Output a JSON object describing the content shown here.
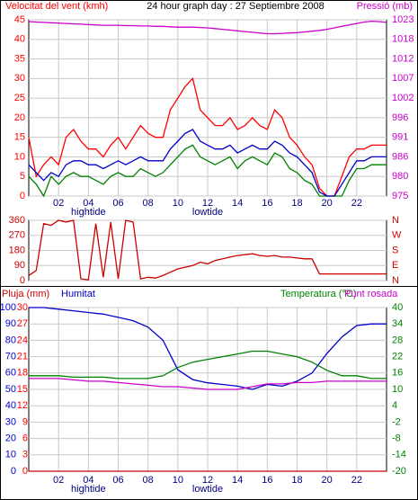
{
  "chart_data": [
    {
      "type": "line",
      "title": "24 hour graph day : 27 Septiembre 2008",
      "y_label": "Velocitat del vent (kmh)",
      "y2_label": "Pressió (mb)",
      "ycolor": "#ff0000",
      "y2color": "#cc00cc",
      "xlim": [
        0,
        24
      ],
      "xticks": [
        {
          "value": 2,
          "label": "02"
        },
        {
          "value": 4,
          "label": "04"
        },
        {
          "value": 6,
          "label": "06"
        },
        {
          "value": 8,
          "label": "08"
        },
        {
          "value": 10,
          "label": "10"
        },
        {
          "value": 12,
          "label": "12"
        },
        {
          "value": 14,
          "label": "14"
        },
        {
          "value": 16,
          "label": "16"
        },
        {
          "value": 18,
          "label": "18"
        },
        {
          "value": 20,
          "label": "20"
        },
        {
          "value": 22,
          "label": "22"
        }
      ],
      "annotations": [
        {
          "text": "hightide",
          "x": 4
        },
        {
          "text": "lowtide",
          "x": 12
        }
      ],
      "ylim": [
        0,
        45
      ],
      "yticks": [
        0,
        5,
        10,
        15,
        20,
        25,
        30,
        35,
        40,
        45
      ],
      "y2lim": [
        975,
        1023
      ],
      "y2ticks": [
        975,
        {
          "value": 980.33,
          "label": "980"
        },
        {
          "value": 985.67,
          "label": "986"
        },
        991,
        {
          "value": 996.33,
          "label": "996"
        },
        {
          "value": 1001.67,
          "label": "1002"
        },
        1007,
        {
          "value": 1012.33,
          "label": "1012"
        },
        {
          "value": 1017.67,
          "label": "1018"
        },
        1023
      ],
      "grid": true,
      "x": [
        0,
        0.5,
        1,
        1.5,
        2,
        2.5,
        3,
        3.5,
        4,
        4.5,
        5,
        5.5,
        6,
        6.5,
        7,
        7.5,
        8,
        8.5,
        9,
        9.5,
        10,
        10.5,
        11,
        11.5,
        12,
        12.5,
        13,
        13.5,
        14,
        14.5,
        15,
        15.5,
        16,
        16.5,
        17,
        17.5,
        18,
        18.5,
        19,
        19.5,
        20,
        20.5,
        21,
        21.5,
        22,
        22.5,
        23,
        23.5,
        24
      ],
      "series": [
        {
          "color": "#ff0000",
          "values": [
            15,
            5,
            8,
            10,
            8,
            15,
            17,
            14,
            12,
            12,
            10,
            13,
            15,
            12,
            15,
            18,
            16,
            15,
            15,
            22,
            25,
            28,
            30,
            22,
            20,
            18,
            18,
            20,
            17,
            18,
            20,
            18,
            17,
            22,
            20,
            15,
            13,
            10,
            8,
            2,
            0,
            0,
            5,
            10,
            12,
            12,
            13,
            13,
            13
          ]
        },
        {
          "color": "#008000",
          "values": [
            5,
            3,
            0,
            5,
            3,
            5,
            6,
            5,
            5,
            4,
            3,
            5,
            6,
            5,
            5,
            7,
            6,
            5,
            6,
            8,
            10,
            12,
            13,
            10,
            9,
            8,
            9,
            10,
            7,
            9,
            10,
            9,
            8,
            11,
            10,
            7,
            6,
            4,
            3,
            0,
            0,
            0,
            0,
            4,
            7,
            7,
            8,
            8,
            8
          ]
        },
        {
          "color": "#0000cc",
          "values": [
            8,
            6,
            4,
            6,
            5,
            8,
            9,
            9,
            8,
            8,
            7,
            8,
            9,
            8,
            9,
            10,
            9,
            9,
            9,
            12,
            14,
            16,
            17,
            14,
            13,
            12,
            12,
            13,
            11,
            12,
            13,
            12,
            12,
            14,
            13,
            11,
            10,
            8,
            6,
            1,
            0,
            0,
            3,
            6,
            9,
            9,
            10,
            10,
            10
          ]
        },
        {
          "color": "#cc00cc",
          "axis": "y2",
          "values": [
            1022.5,
            1022.4,
            1022.3,
            1022.2,
            1022.1,
            1022,
            1021.9,
            1021.8,
            1021.7,
            1021.6,
            1021.5,
            1021.5,
            1021.5,
            1021.4,
            1021.4,
            1021.3,
            1021.3,
            1021.2,
            1021.2,
            1021.1,
            1021,
            1021,
            1021,
            1020.9,
            1020.8,
            1020.6,
            1020.4,
            1020.2,
            1020,
            1019.8,
            1019.6,
            1019.4,
            1019.2,
            1019.2,
            1019.3,
            1019.4,
            1019.5,
            1019.7,
            1019.9,
            1020.1,
            1020.4,
            1020.8,
            1021.2,
            1021.6,
            1022,
            1022.4,
            1022.6,
            1022.5,
            1022.3
          ]
        }
      ]
    },
    {
      "type": "line",
      "ycolor": "#cc0000",
      "y2color": "#cc0000",
      "xlim": [
        0,
        24
      ],
      "ylim": [
        0,
        360
      ],
      "yticks": [
        0,
        90,
        180,
        270,
        360
      ],
      "y2lim": [
        0,
        360
      ],
      "y2ticks": [
        {
          "value": 360,
          "label": "N"
        },
        {
          "value": 270,
          "label": "W"
        },
        {
          "value": 180,
          "label": "S"
        },
        {
          "value": 90,
          "label": "E"
        },
        {
          "value": 0,
          "label": "N"
        }
      ],
      "grid": true,
      "x": [
        0,
        0.5,
        1,
        1.5,
        2,
        2.5,
        3,
        3.5,
        4,
        4.5,
        5,
        5.5,
        6,
        6.5,
        7,
        7.5,
        8,
        8.5,
        9,
        9.5,
        10,
        10.5,
        11,
        11.5,
        12,
        12.5,
        13,
        13.5,
        14,
        14.5,
        15,
        15.5,
        16,
        16.5,
        17,
        17.5,
        18,
        18.5,
        19,
        19.5,
        20,
        20.5,
        21,
        21.5,
        22,
        22.5,
        23,
        23.5,
        24
      ],
      "series": [
        {
          "color": "#cc0000",
          "values": [
            30,
            60,
            340,
            330,
            360,
            350,
            360,
            10,
            5,
            340,
            20,
            350,
            10,
            360,
            350,
            10,
            20,
            15,
            30,
            50,
            70,
            80,
            90,
            110,
            100,
            120,
            130,
            140,
            150,
            155,
            160,
            150,
            145,
            150,
            140,
            140,
            135,
            130,
            130,
            40,
            40,
            40,
            40,
            40,
            40,
            40,
            40,
            40,
            40
          ]
        }
      ]
    },
    {
      "type": "line",
      "ycolor": "#ff0000",
      "y2color": "#008000",
      "y3color": "#0000cc",
      "xlim": [
        0,
        24
      ],
      "xticks": [
        {
          "value": 2,
          "label": "02"
        },
        {
          "value": 4,
          "label": "04"
        },
        {
          "value": 6,
          "label": "06"
        },
        {
          "value": 8,
          "label": "08"
        },
        {
          "value": 10,
          "label": "10"
        },
        {
          "value": 12,
          "label": "12"
        },
        {
          "value": 14,
          "label": "14"
        },
        {
          "value": 16,
          "label": "16"
        },
        {
          "value": 18,
          "label": "18"
        },
        {
          "value": 20,
          "label": "20"
        },
        {
          "value": 22,
          "label": "22"
        }
      ],
      "annotations": [
        {
          "text": "hightide",
          "x": 4
        },
        {
          "text": "lowtide",
          "x": 12
        }
      ],
      "ylim": [
        0,
        30
      ],
      "yticks": [
        0,
        3,
        6,
        9,
        12,
        15,
        18,
        21,
        24,
        27,
        30
      ],
      "y3lim": [
        0,
        100
      ],
      "y3ticks": [
        0,
        10,
        20,
        30,
        40,
        50,
        60,
        70,
        80,
        90,
        100
      ],
      "y2lim": [
        -20,
        40
      ],
      "y2ticks": [
        -20,
        -14,
        -8,
        -2,
        4,
        10,
        16,
        22,
        28,
        34,
        40
      ],
      "grid": true,
      "x": [
        0,
        1,
        2,
        3,
        4,
        5,
        6,
        7,
        8,
        9,
        10,
        11,
        12,
        13,
        14,
        15,
        16,
        17,
        18,
        19,
        20,
        21,
        22,
        23,
        24
      ],
      "series": [
        {
          "name": "Pluja (mm)",
          "color": "#cc0000",
          "values": [
            0,
            0,
            0,
            0,
            0,
            0,
            0,
            0,
            0,
            0,
            0,
            0,
            0,
            0,
            0,
            0,
            0,
            0,
            0,
            0,
            0,
            0,
            0,
            0,
            0
          ]
        },
        {
          "name": "Humitat",
          "color": "#0000cc",
          "axis": "y3",
          "values": [
            100,
            100,
            99,
            98,
            97,
            96,
            94,
            92,
            88,
            80,
            62,
            56,
            54,
            53,
            52,
            50,
            53,
            52,
            55,
            60,
            72,
            82,
            89,
            90,
            90
          ]
        },
        {
          "name": "Temperatura (°C)",
          "color": "#008000",
          "axis": "y2",
          "values": [
            15,
            15,
            15,
            14.5,
            14.5,
            14.5,
            14,
            14,
            14,
            15,
            18,
            20,
            21,
            22,
            23,
            24,
            24,
            23,
            22,
            20,
            17,
            15,
            15,
            14,
            14
          ]
        },
        {
          "name": "Punt rosada",
          "color": "#cc00cc",
          "axis": "y2",
          "values": [
            14,
            14,
            14,
            13.5,
            13,
            13,
            12.5,
            12,
            11.5,
            11,
            11,
            10.5,
            10,
            10,
            10,
            11,
            12,
            12,
            12.5,
            12.5,
            13,
            13,
            13,
            13,
            13
          ]
        }
      ]
    }
  ]
}
